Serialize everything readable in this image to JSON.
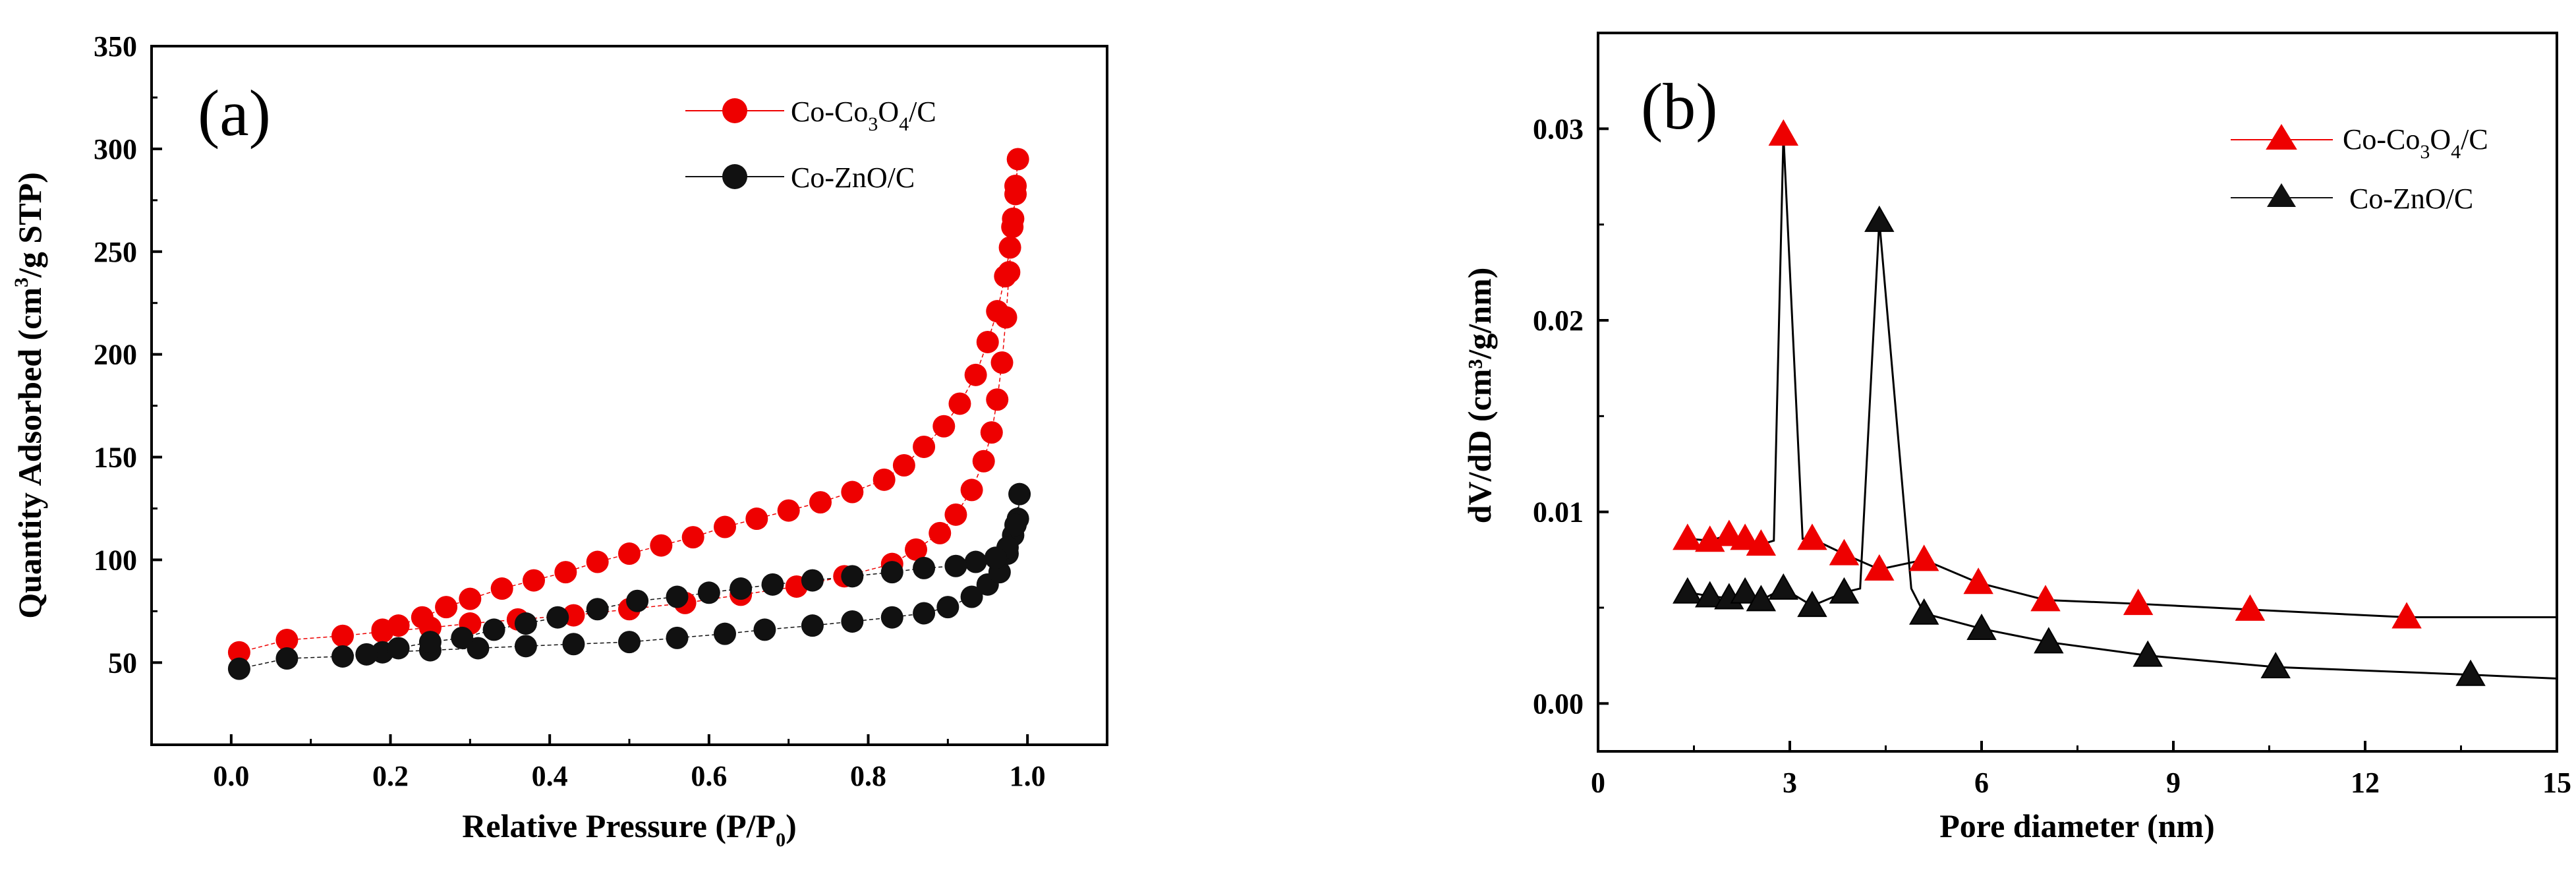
{
  "chart_data": [
    {
      "type": "scatter",
      "panel_label": "(a)",
      "xlabel": "Relative Pressure (P/P",
      "xlabel_sub": "0",
      "xlabel_end": ")",
      "ylabel_pre": "Quantity Adsorbed (cm",
      "ylabel_sup": "3",
      "ylabel_post": "/g STP)",
      "xlim": [
        -0.1,
        1.1
      ],
      "ylim": [
        10,
        350
      ],
      "xticks": [
        0.0,
        0.2,
        0.4,
        0.6,
        0.8,
        1.0
      ],
      "xtick_labels": [
        "0.0",
        "0.2",
        "0.4",
        "0.6",
        "0.8",
        "1.0"
      ],
      "yticks": [
        50,
        100,
        150,
        200,
        250,
        300,
        350
      ],
      "ytick_labels": [
        "50",
        "100",
        "150",
        "200",
        "250",
        "300",
        "350"
      ],
      "legend_position": "top-right",
      "series": [
        {
          "name_pre": "Co-Co",
          "name_sub1": "3",
          "name_mid": "O",
          "name_sub2": "4",
          "name_post": "/C",
          "color": "#ee0000",
          "marker": "circle",
          "points": [
            [
              0.01,
              55
            ],
            [
              0.07,
              61
            ],
            [
              0.14,
              63
            ],
            [
              0.19,
              65
            ],
            [
              0.25,
              67
            ],
            [
              0.3,
              69
            ],
            [
              0.36,
              71
            ],
            [
              0.43,
              73
            ],
            [
              0.5,
              76
            ],
            [
              0.57,
              79
            ],
            [
              0.64,
              83
            ],
            [
              0.71,
              87
            ],
            [
              0.77,
              92
            ],
            [
              0.83,
              98
            ],
            [
              0.86,
              105
            ],
            [
              0.89,
              113
            ],
            [
              0.91,
              122
            ],
            [
              0.93,
              134
            ],
            [
              0.945,
              148
            ],
            [
              0.955,
              162
            ],
            [
              0.962,
              178
            ],
            [
              0.968,
              196
            ],
            [
              0.973,
              218
            ],
            [
              0.977,
              240
            ],
            [
              0.981,
              262
            ],
            [
              0.985,
              282
            ],
            [
              0.988,
              295
            ],
            [
              0.985,
              278
            ],
            [
              0.982,
              266
            ],
            [
              0.978,
              252
            ],
            [
              0.972,
              238
            ],
            [
              0.962,
              221
            ],
            [
              0.95,
              206
            ],
            [
              0.935,
              190
            ],
            [
              0.915,
              176
            ],
            [
              0.895,
              165
            ],
            [
              0.87,
              155
            ],
            [
              0.845,
              146
            ],
            [
              0.82,
              139
            ],
            [
              0.78,
              133
            ],
            [
              0.74,
              128
            ],
            [
              0.7,
              124
            ],
            [
              0.66,
              120
            ],
            [
              0.62,
              116
            ],
            [
              0.58,
              111
            ],
            [
              0.54,
              107
            ],
            [
              0.5,
              103
            ],
            [
              0.46,
              99
            ],
            [
              0.42,
              94
            ],
            [
              0.38,
              90
            ],
            [
              0.34,
              86
            ],
            [
              0.3,
              81
            ],
            [
              0.27,
              77
            ],
            [
              0.24,
              72
            ],
            [
              0.21,
              68
            ],
            [
              0.19,
              66
            ]
          ]
        },
        {
          "name_pre": "Co-ZnO/C",
          "color": "#111111",
          "marker": "circle",
          "points": [
            [
              0.01,
              47
            ],
            [
              0.07,
              52
            ],
            [
              0.14,
              53
            ],
            [
              0.19,
              55
            ],
            [
              0.25,
              56
            ],
            [
              0.31,
              57
            ],
            [
              0.37,
              58
            ],
            [
              0.43,
              59
            ],
            [
              0.5,
              60
            ],
            [
              0.56,
              62
            ],
            [
              0.62,
              64
            ],
            [
              0.67,
              66
            ],
            [
              0.73,
              68
            ],
            [
              0.78,
              70
            ],
            [
              0.83,
              72
            ],
            [
              0.87,
              74
            ],
            [
              0.9,
              77
            ],
            [
              0.93,
              82
            ],
            [
              0.95,
              88
            ],
            [
              0.965,
              94
            ],
            [
              0.975,
              103
            ],
            [
              0.982,
              112
            ],
            [
              0.988,
              120
            ],
            [
              0.99,
              132
            ],
            [
              0.985,
              117
            ],
            [
              0.975,
              106
            ],
            [
              0.96,
              101
            ],
            [
              0.935,
              99
            ],
            [
              0.91,
              97
            ],
            [
              0.87,
              96
            ],
            [
              0.83,
              94
            ],
            [
              0.78,
              92
            ],
            [
              0.73,
              90
            ],
            [
              0.68,
              88
            ],
            [
              0.64,
              86
            ],
            [
              0.6,
              84
            ],
            [
              0.56,
              82
            ],
            [
              0.51,
              80
            ],
            [
              0.46,
              76
            ],
            [
              0.41,
              72
            ],
            [
              0.37,
              69
            ],
            [
              0.33,
              66
            ],
            [
              0.29,
              62
            ],
            [
              0.25,
              60
            ],
            [
              0.21,
              57
            ],
            [
              0.17,
              54
            ]
          ]
        }
      ]
    },
    {
      "type": "line",
      "panel_label": "(b)",
      "xlabel": "Pore diameter (nm)",
      "ylabel": "dV/dD (cm³/g/nm)",
      "xlim": [
        0,
        15
      ],
      "ylim": [
        -0.0025,
        0.035
      ],
      "xticks": [
        0,
        3,
        6,
        9,
        12,
        15
      ],
      "xtick_labels": [
        "0",
        "3",
        "6",
        "9",
        "12",
        "15"
      ],
      "yticks": [
        0.0,
        0.01,
        0.02,
        0.03
      ],
      "ytick_labels": [
        "0.00",
        "0.01",
        "0.02",
        "0.03"
      ],
      "legend_position": "top-right",
      "series": [
        {
          "name_pre": "Co-Co",
          "name_sub1": "3",
          "name_mid": "O",
          "name_sub2": "4",
          "name_post": "/C",
          "color": "#ee0000",
          "marker": "triangle",
          "markers": [
            [
              1.4,
              0.0086
            ],
            [
              1.75,
              0.0085
            ],
            [
              2.05,
              0.0088
            ],
            [
              2.3,
              0.0086
            ],
            [
              2.55,
              0.0083
            ],
            [
              2.9,
              0.0297
            ],
            [
              3.35,
              0.0086
            ],
            [
              3.85,
              0.0078
            ],
            [
              4.4,
              0.007
            ],
            [
              5.1,
              0.0075
            ],
            [
              5.95,
              0.0063
            ],
            [
              7.0,
              0.0054
            ],
            [
              8.45,
              0.0052
            ],
            [
              10.2,
              0.0049
            ],
            [
              12.65,
              0.0045
            ]
          ],
          "line": [
            [
              1.4,
              0.0086
            ],
            [
              1.75,
              0.0085
            ],
            [
              2.05,
              0.0088
            ],
            [
              2.3,
              0.0086
            ],
            [
              2.55,
              0.0083
            ],
            [
              2.75,
              0.0085
            ],
            [
              2.9,
              0.0297
            ],
            [
              3.2,
              0.0086
            ],
            [
              3.35,
              0.0086
            ],
            [
              3.85,
              0.0078
            ],
            [
              4.4,
              0.007
            ],
            [
              5.1,
              0.0075
            ],
            [
              5.95,
              0.0063
            ],
            [
              7.0,
              0.0054
            ],
            [
              8.45,
              0.0052
            ],
            [
              10.2,
              0.0049
            ],
            [
              12.65,
              0.0045
            ],
            [
              15.0,
              0.0045
            ]
          ]
        },
        {
          "name_pre": "Co-ZnO/C",
          "color": "#111111",
          "marker": "triangle",
          "markers": [
            [
              1.4,
              0.0058
            ],
            [
              1.75,
              0.0056
            ],
            [
              2.05,
              0.0055
            ],
            [
              2.3,
              0.0058
            ],
            [
              2.55,
              0.0054
            ],
            [
              2.9,
              0.006
            ],
            [
              3.35,
              0.0051
            ],
            [
              3.85,
              0.0058
            ],
            [
              4.4,
              0.0252
            ],
            [
              5.1,
              0.0047
            ],
            [
              6.0,
              0.0039
            ],
            [
              7.05,
              0.0032
            ],
            [
              8.6,
              0.0025
            ],
            [
              10.6,
              0.0019
            ],
            [
              13.65,
              0.0015
            ]
          ],
          "line": [
            [
              1.4,
              0.0058
            ],
            [
              1.75,
              0.0056
            ],
            [
              2.05,
              0.0055
            ],
            [
              2.3,
              0.0058
            ],
            [
              2.55,
              0.0054
            ],
            [
              2.9,
              0.006
            ],
            [
              3.35,
              0.0051
            ],
            [
              3.85,
              0.0058
            ],
            [
              4.1,
              0.006
            ],
            [
              4.4,
              0.0252
            ],
            [
              4.9,
              0.006
            ],
            [
              5.1,
              0.0047
            ],
            [
              6.0,
              0.0039
            ],
            [
              7.05,
              0.0032
            ],
            [
              8.6,
              0.0025
            ],
            [
              10.6,
              0.0019
            ],
            [
              13.65,
              0.0015
            ],
            [
              15.0,
              0.0013
            ]
          ]
        }
      ]
    }
  ]
}
